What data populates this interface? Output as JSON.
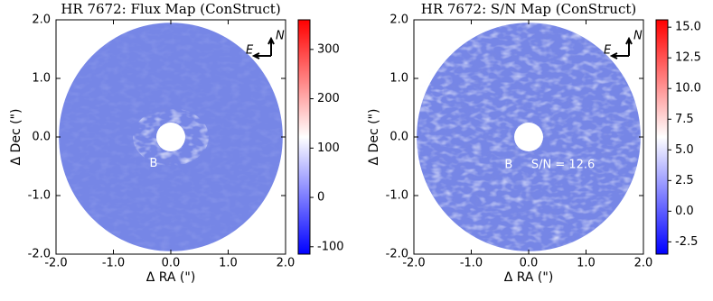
{
  "chart_data": [
    {
      "type": "image",
      "title": "HR 7672: Flux Map (ConStruct)",
      "xlabel": "Δ RA (\")",
      "ylabel": "Δ Dec (\")",
      "xlim": [
        -2,
        2
      ],
      "ylim": [
        -2,
        2
      ],
      "xticks": [
        {
          "value": -2,
          "label": "-2.0"
        },
        {
          "value": -1,
          "label": "-1.0"
        },
        {
          "value": 0,
          "label": "0.0"
        },
        {
          "value": 1,
          "label": "1.0"
        },
        {
          "value": 2,
          "label": "2.0"
        }
      ],
      "yticks": [
        {
          "value": -2,
          "label": "-2.0"
        },
        {
          "value": -1,
          "label": "-1.0"
        },
        {
          "value": 0,
          "label": "0.0"
        },
        {
          "value": 1,
          "label": "1.0"
        },
        {
          "value": 2,
          "label": "2.0"
        }
      ],
      "clim": [
        -115,
        360
      ],
      "cticks": [
        -100,
        0,
        100,
        200,
        300
      ],
      "compass": {
        "north": "N",
        "east": "E"
      },
      "annotations": [
        "B"
      ],
      "noisy": false
    },
    {
      "type": "image",
      "title": "HR 7672: S/N Map (ConStruct)",
      "xlabel": "Δ RA (\")",
      "ylabel": "Δ Dec (\")",
      "xlim": [
        -2,
        2
      ],
      "ylim": [
        -2,
        2
      ],
      "xticks": [
        {
          "value": -2,
          "label": "-2.0"
        },
        {
          "value": -1,
          "label": "-1.0"
        },
        {
          "value": 0,
          "label": "0.0"
        },
        {
          "value": 1,
          "label": "1.0"
        },
        {
          "value": 2,
          "label": "2.0"
        }
      ],
      "yticks": [
        {
          "value": -2,
          "label": "-2.0"
        },
        {
          "value": -1,
          "label": "-1.0"
        },
        {
          "value": 0,
          "label": "0.0"
        },
        {
          "value": 1,
          "label": "1.0"
        },
        {
          "value": 2,
          "label": "2.0"
        }
      ],
      "clim": [
        -3.5,
        15.6
      ],
      "cticks": [
        -2.5,
        {
          "value": 0,
          "label": "0.0"
        },
        2.5,
        {
          "value": 5,
          "label": "5.0"
        },
        7.5,
        {
          "value": 10,
          "label": "10.0"
        },
        12.5,
        {
          "value": 15,
          "label": "15.0"
        }
      ],
      "compass": {
        "north": "N",
        "east": "E"
      },
      "annotations": [
        "B",
        "S/N = 12.6"
      ],
      "noisy": true
    }
  ]
}
